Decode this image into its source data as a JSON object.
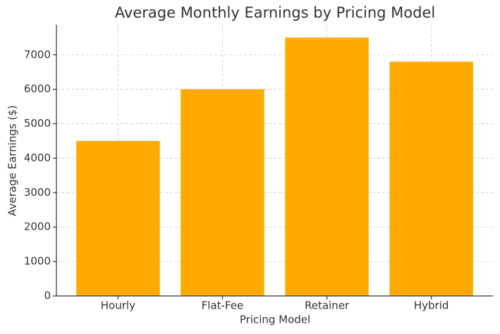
{
  "chart_data": {
    "type": "bar",
    "title": "Average Monthly Earnings by Pricing Model",
    "x_label": "Pricing Model",
    "y_label": "Average Earnings ($)",
    "categories": [
      "Hourly",
      "Flat-Fee",
      "Retainer",
      "Hybrid"
    ],
    "values": [
      4500,
      6000,
      7500,
      6800
    ],
    "color": "#ffaa00",
    "ylim": [
      0,
      7875
    ],
    "yticks": [
      0,
      1000,
      2000,
      3000,
      4000,
      5000,
      6000,
      7000
    ],
    "grid": true
  }
}
